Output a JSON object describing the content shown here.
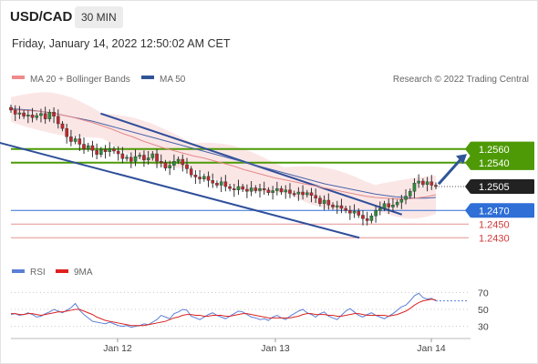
{
  "header": {
    "symbol": "USD/CAD",
    "timeframe": "30 MIN",
    "datetime": "Friday, January 14, 2022 12:50:02 AM CET"
  },
  "legend": {
    "items": [
      {
        "label": "MA 20 + Bollinger Bands",
        "color": "#f08a8a"
      },
      {
        "label": "MA 50",
        "color": "#2f5597"
      }
    ],
    "copyright": "Research © 2022 Trading Central",
    "rsi_items": [
      {
        "label": "RSI",
        "color": "#5b7fd6"
      },
      {
        "label": "9MA",
        "color": "#e02020"
      }
    ]
  },
  "chart_data": {
    "type": "candlestick",
    "x_ticks": [
      "Jan 12",
      "Jan 13",
      "Jan 14"
    ],
    "price_ylim": [
      1.2405,
      1.2645
    ],
    "levels": [
      {
        "value": 1.256,
        "label": "1.2560",
        "kind": "resistance",
        "color": "#4e9a06"
      },
      {
        "value": 1.254,
        "label": "1.2540",
        "kind": "resistance",
        "color": "#4e9a06"
      },
      {
        "value": 1.2505,
        "label": "1.2505",
        "kind": "last",
        "color": "#222222"
      },
      {
        "value": 1.247,
        "label": "1.2470",
        "kind": "pivot",
        "color": "#2f6fd6"
      },
      {
        "value": 1.245,
        "label": "1.2450",
        "kind": "support",
        "color": "#d23b3b"
      },
      {
        "value": 1.243,
        "label": "1.2430",
        "kind": "support",
        "color": "#d23b3b"
      }
    ],
    "candles_close": [
      1.2617,
      1.2611,
      1.2613,
      1.2608,
      1.261,
      1.2606,
      1.2609,
      1.2612,
      1.2604,
      1.2614,
      1.2608,
      1.2597,
      1.259,
      1.2578,
      1.2571,
      1.2575,
      1.2567,
      1.256,
      1.2565,
      1.2558,
      1.2552,
      1.2559,
      1.2556,
      1.256,
      1.2557,
      1.2553,
      1.2546,
      1.2548,
      1.2542,
      1.2549,
      1.2551,
      1.2544,
      1.2547,
      1.2553,
      1.2542,
      1.254,
      1.2532,
      1.2536,
      1.2542,
      1.2545,
      1.2537,
      1.2531,
      1.2522,
      1.2519,
      1.2516,
      1.252,
      1.2514,
      1.251,
      1.2507,
      1.2512,
      1.2505,
      1.2502,
      1.25,
      1.2505,
      1.2501,
      1.2498,
      1.2503,
      1.2499,
      1.2502,
      1.25,
      1.2496,
      1.2499,
      1.2502,
      1.2497,
      1.25,
      1.2495,
      1.2494,
      1.2497,
      1.2493,
      1.2496,
      1.2492,
      1.2488,
      1.248,
      1.2485,
      1.2478,
      1.2475,
      1.2477,
      1.2473,
      1.247,
      1.2466,
      1.2469,
      1.2463,
      1.2458,
      1.2455,
      1.2462,
      1.247,
      1.2473,
      1.248,
      1.2475,
      1.2478,
      1.2482,
      1.2486,
      1.2491,
      1.2498,
      1.251,
      1.2513,
      1.2508,
      1.2512,
      1.2507,
      1.2505
    ],
    "ma20": [
      1.2618,
      1.2617,
      1.2616,
      1.2615,
      1.2613,
      1.261,
      1.2607,
      1.2603,
      1.2599,
      1.2594,
      1.2589,
      1.2583,
      1.2578,
      1.2572,
      1.2567,
      1.2562,
      1.2558,
      1.2554,
      1.255,
      1.2547,
      1.2543,
      1.2539,
      1.2535,
      1.253,
      1.2526,
      1.2522,
      1.2518,
      1.2515,
      1.2512,
      1.2509,
      1.2506,
      1.2503,
      1.25,
      1.2497,
      1.2494,
      1.2491,
      1.2489,
      1.2488,
      1.2487,
      1.2487,
      1.2488,
      1.249,
      1.2493
    ],
    "ma50": [
      1.2619,
      1.2618,
      1.2617,
      1.2615,
      1.2613,
      1.261,
      1.2607,
      1.2604,
      1.2601,
      1.2597,
      1.2593,
      1.2589,
      1.2585,
      1.2581,
      1.2577,
      1.2573,
      1.2569,
      1.2565,
      1.2561,
      1.2557,
      1.2553,
      1.2549,
      1.2545,
      1.2541,
      1.2537,
      1.2533,
      1.2529,
      1.2525,
      1.2521,
      1.2517,
      1.2513,
      1.2509,
      1.2506,
      1.2503,
      1.25,
      1.2497,
      1.2494,
      1.2492,
      1.249,
      1.2489,
      1.2488,
      1.2488,
      1.2489
    ],
    "channel": {
      "upper": [
        [
          0.23,
          1.2612
        ],
        [
          0.92,
          1.2464
        ]
      ],
      "lower": [
        [
          0.18,
          1.2574
        ],
        [
          0.82,
          1.243
        ]
      ]
    },
    "forecast_arrow": {
      "from": 1.2506,
      "to": 1.2558
    },
    "rsi": {
      "ylim": [
        20,
        80
      ],
      "ticks": [
        70,
        50,
        30
      ],
      "values": [
        44,
        45,
        43,
        44,
        46,
        44,
        41,
        42,
        45,
        47,
        50,
        48,
        46,
        49,
        52,
        57,
        49,
        44,
        40,
        36,
        35,
        34,
        33,
        35,
        33,
        31,
        30,
        31,
        29,
        30,
        31,
        33,
        32,
        35,
        38,
        43,
        41,
        39,
        45,
        47,
        50,
        49,
        42,
        40,
        38,
        41,
        44,
        46,
        43,
        41,
        39,
        42,
        45,
        48,
        47,
        44,
        41,
        40,
        38,
        39,
        37,
        41,
        43,
        40,
        38,
        42,
        45,
        48,
        50,
        46,
        44,
        41,
        45,
        47,
        42,
        40,
        38,
        43,
        48,
        51,
        47,
        43,
        41,
        44,
        46,
        43,
        41,
        39,
        42,
        45,
        49,
        53,
        55,
        60,
        66,
        69,
        64,
        62,
        63,
        60
      ],
      "ma9": [
        45,
        45,
        44,
        44,
        45,
        45,
        44,
        43,
        44,
        45,
        46,
        47,
        47,
        48,
        49,
        50,
        50,
        48,
        46,
        44,
        41,
        39,
        37,
        36,
        35,
        34,
        33,
        32,
        31,
        31,
        31,
        31,
        32,
        33,
        34,
        35,
        36,
        38,
        40,
        41,
        43,
        44,
        44,
        43,
        43,
        42,
        42,
        43,
        43,
        43,
        42,
        42,
        43,
        44,
        45,
        45,
        44,
        43,
        42,
        41,
        40,
        40,
        40,
        40,
        40,
        40,
        41,
        42,
        44,
        45,
        45,
        44,
        44,
        44,
        43,
        43,
        42,
        42,
        43,
        44,
        45,
        45,
        44,
        43,
        43,
        43,
        43,
        43,
        42,
        43,
        44,
        46,
        48,
        51,
        55,
        58,
        60,
        61,
        62,
        61
      ]
    }
  }
}
